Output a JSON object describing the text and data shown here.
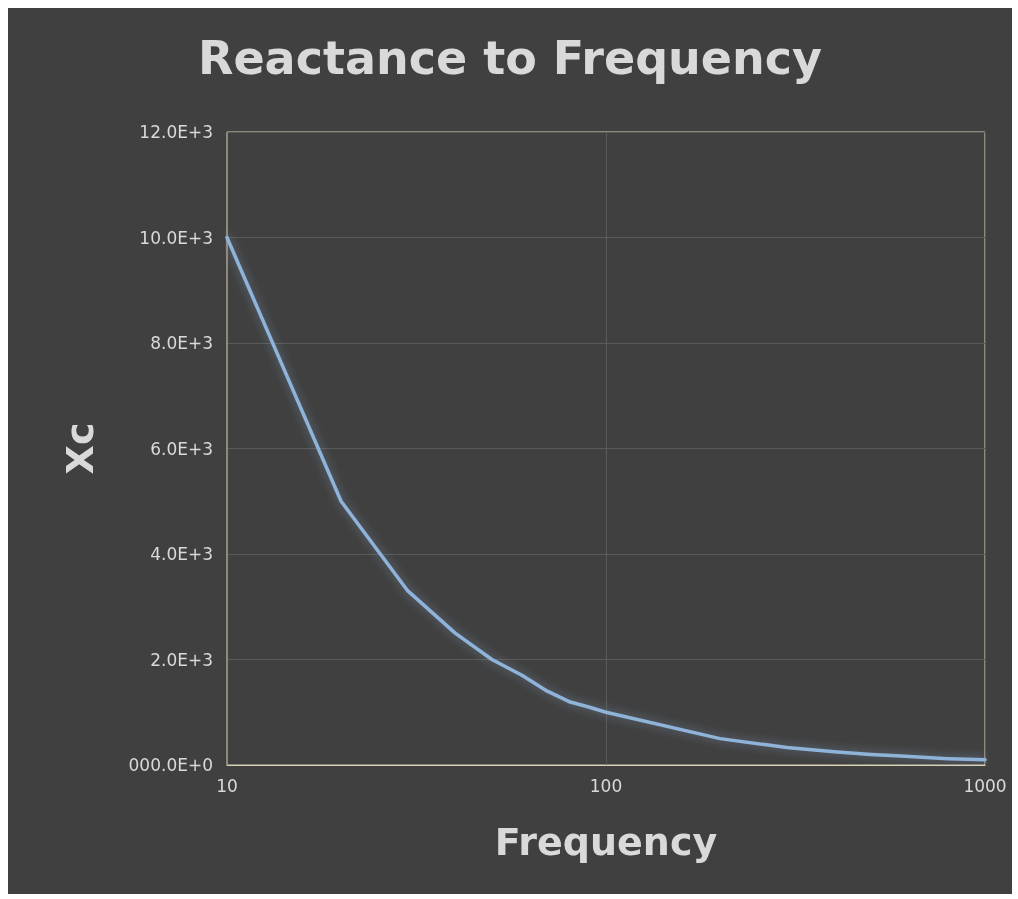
{
  "chart_data": {
    "type": "line",
    "title": "Reactance to Frequency",
    "xlabel": "Frequency",
    "ylabel": "Xc",
    "x": [
      10,
      20,
      30,
      40,
      50,
      60,
      70,
      80,
      90,
      100,
      200,
      300,
      400,
      500,
      600,
      700,
      800,
      900,
      1000
    ],
    "series": [
      {
        "color": "#8fb3d9",
        "values": [
          10000,
          5000,
          3300,
          2500,
          2000,
          1700,
          1400,
          1200,
          1100,
          1000,
          500,
          330,
          250,
          200,
          170,
          140,
          120,
          110,
          100
        ]
      }
    ],
    "log": "x",
    "xlim": [
      10,
      1000
    ],
    "xticks": [
      10,
      100,
      1000
    ],
    "ylim": [
      0,
      12000
    ],
    "yticks": [
      {
        "value": 0,
        "label": "000.0E+0"
      },
      {
        "value": 2000,
        "label": "2.0E+3"
      },
      {
        "value": 4000,
        "label": "4.0E+3"
      },
      {
        "value": 6000,
        "label": "6.0E+3"
      },
      {
        "value": 8000,
        "label": "8.0E+3"
      },
      {
        "value": 10000,
        "label": "10.0E+3"
      },
      {
        "value": 12000,
        "label": "12.0E+3"
      }
    ],
    "grid": true,
    "marker": "none",
    "line_style": "solid"
  }
}
